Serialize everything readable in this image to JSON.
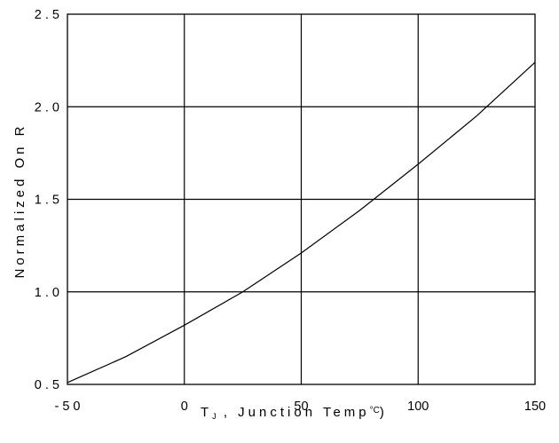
{
  "chart_data": {
    "type": "line",
    "xlabel_main": "T",
    "xlabel_sub": "J",
    "xlabel_rest": " ,  Junction  Temp",
    "xlabel_unit_sup": "°C",
    "xlabel_close": ")",
    "ylabel": "Normalized On R",
    "xlim": [
      -50,
      150
    ],
    "ylim": [
      0.5,
      2.5
    ],
    "grid": true,
    "x_ticks": [
      {
        "value": -50,
        "label": "- 5 0"
      },
      {
        "value": 0,
        "label": "0"
      },
      {
        "value": 50,
        "label": "50"
      },
      {
        "value": 100,
        "label": "100"
      },
      {
        "value": 150,
        "label": "150"
      }
    ],
    "y_ticks": [
      {
        "value": 0.5,
        "label": "0 . 5"
      },
      {
        "value": 1.0,
        "label": "1 . 0"
      },
      {
        "value": 1.5,
        "label": "1 . 5"
      },
      {
        "value": 2.0,
        "label": "2 . 0"
      },
      {
        "value": 2.5,
        "label": "2 . 5"
      }
    ],
    "series": [
      {
        "x": [
          -50,
          -25,
          0,
          25,
          50,
          75,
          100,
          125,
          150
        ],
        "y": [
          0.51,
          0.65,
          0.82,
          1.0,
          1.21,
          1.44,
          1.69,
          1.95,
          2.24
        ]
      }
    ]
  }
}
